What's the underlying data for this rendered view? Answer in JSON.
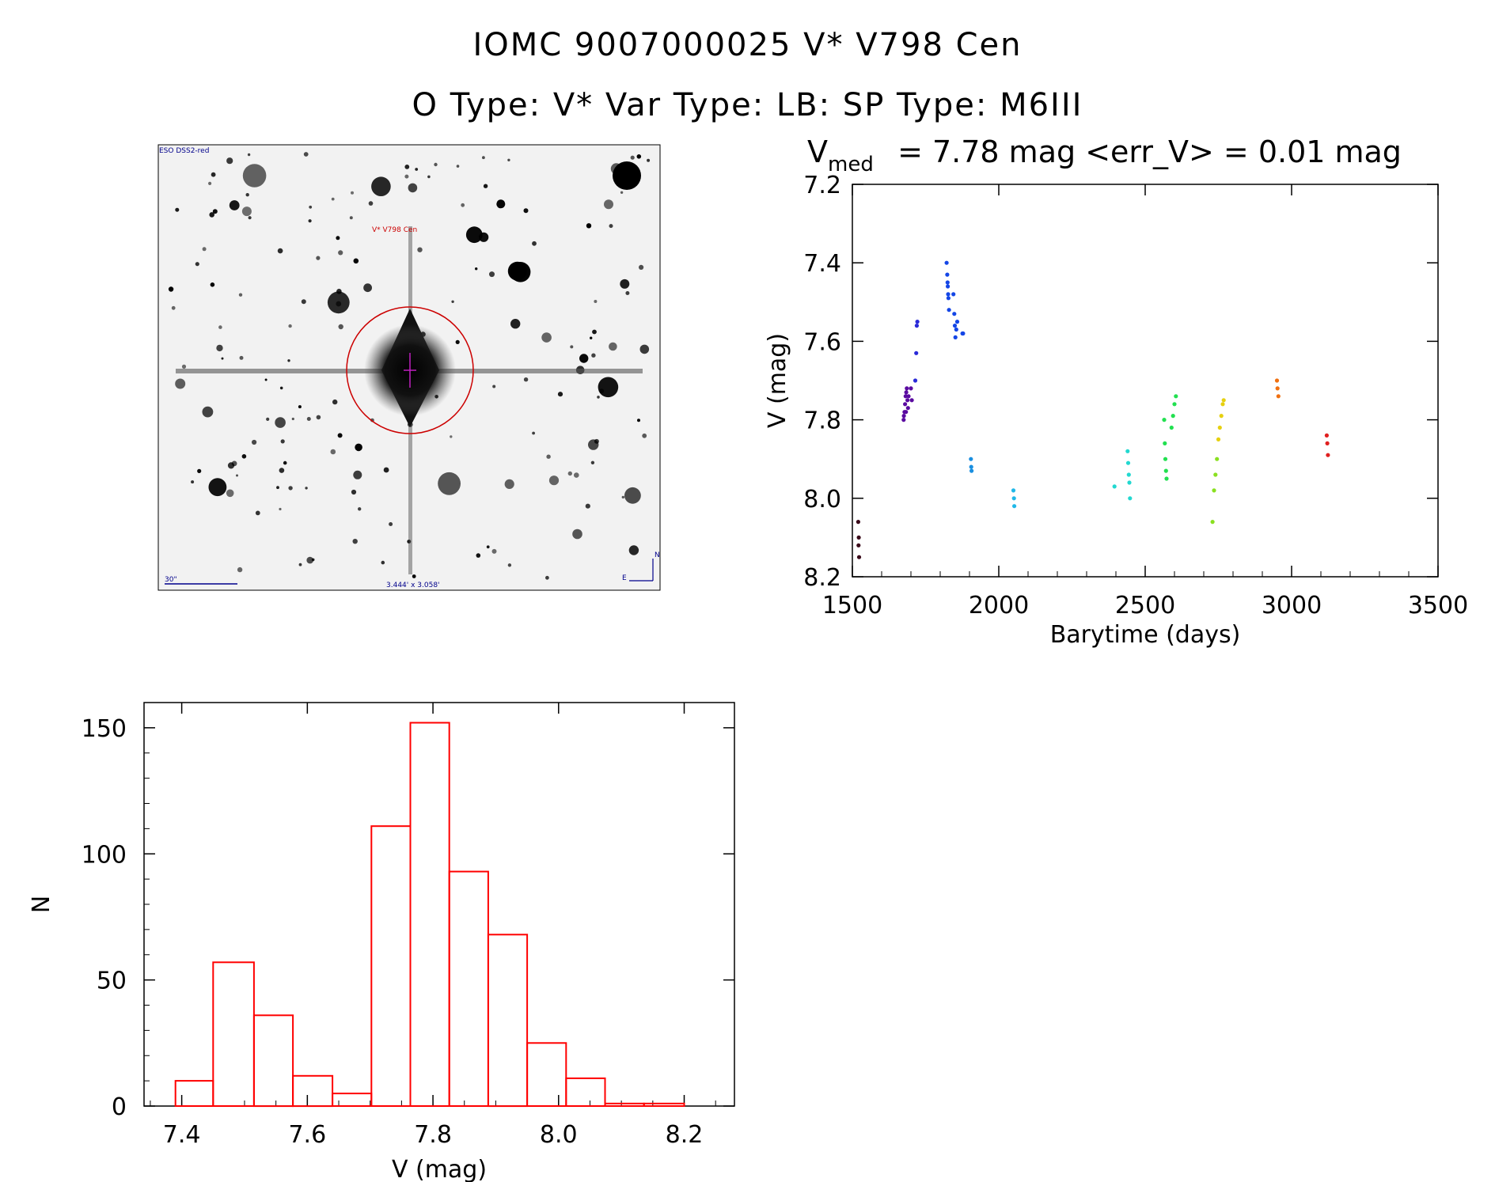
{
  "header": {
    "title_line1": "IOMC 9007000025    V* V798 Cen",
    "title_line2": "O Type: V*  Var Type: LB:  SP Type: M6III"
  },
  "finder_chart": {
    "survey_label": "ESO DSS2-red",
    "target_label": "V* V798 Cen",
    "scale_label": "30\"",
    "fov_label": "3.444' x 3.058'",
    "compass_north": "N",
    "compass_east": "E"
  },
  "colors": {
    "histogram": "#ff0000",
    "circle": "#cc0000",
    "annotation_blue": "#00008b"
  },
  "chart_data": [
    {
      "type": "scatter",
      "title_main": "V",
      "title_sub": "med",
      "title_rest": " = 7.78 mag <err_V> = 0.01 mag",
      "xlabel": "Barytime (days)",
      "ylabel": "V (mag)",
      "xlim": [
        1500,
        3500
      ],
      "ylim": [
        8.2,
        7.2
      ],
      "x_ticks": [
        "1500",
        "2000",
        "2500",
        "3000",
        "3500"
      ],
      "y_ticks": [
        "7.2",
        "7.4",
        "7.6",
        "7.8",
        "8.0",
        "8.2"
      ],
      "series": [
        {
          "name": "s1",
          "color": "#3a0a1a",
          "points": [
            [
              1520,
              8.06
            ],
            [
              1522,
              8.1
            ],
            [
              1521,
              8.12
            ],
            [
              1523,
              8.15
            ]
          ]
        },
        {
          "name": "s2",
          "color": "#5a0aa0",
          "points": [
            [
              1675,
              7.8
            ],
            [
              1678,
              7.78
            ],
            [
              1680,
              7.76
            ],
            [
              1682,
              7.74
            ],
            [
              1684,
              7.73
            ],
            [
              1686,
              7.72
            ],
            [
              1688,
              7.75
            ],
            [
              1690,
              7.77
            ],
            [
              1676,
              7.79
            ],
            [
              1683,
              7.78
            ],
            [
              1692,
              7.74
            ],
            [
              1700,
              7.72
            ],
            [
              1703,
              7.75
            ]
          ]
        },
        {
          "name": "s3",
          "color": "#2a2ad8",
          "points": [
            [
              1715,
              7.7
            ],
            [
              1718,
              7.63
            ],
            [
              1720,
              7.56
            ],
            [
              1722,
              7.55
            ]
          ]
        },
        {
          "name": "s4",
          "color": "#1446e6",
          "points": [
            [
              1822,
              7.4
            ],
            [
              1824,
              7.43
            ],
            [
              1826,
              7.46
            ],
            [
              1828,
              7.49
            ],
            [
              1830,
              7.52
            ],
            [
              1825,
              7.45
            ],
            [
              1827,
              7.48
            ],
            [
              1845,
              7.48
            ],
            [
              1848,
              7.53
            ],
            [
              1850,
              7.56
            ],
            [
              1852,
              7.59
            ],
            [
              1855,
              7.57
            ],
            [
              1858,
              7.55
            ],
            [
              1876,
              7.58
            ],
            [
              1878,
              7.58
            ]
          ]
        },
        {
          "name": "s5",
          "color": "#1a8fe0",
          "points": [
            [
              1905,
              7.9
            ],
            [
              1906,
              7.92
            ],
            [
              1907,
              7.93
            ]
          ]
        },
        {
          "name": "s6",
          "color": "#20b8e8",
          "points": [
            [
              2050,
              7.98
            ],
            [
              2052,
              8.0
            ],
            [
              2053,
              8.02
            ]
          ]
        },
        {
          "name": "s7",
          "color": "#22d8d0",
          "points": [
            [
              2395,
              7.97
            ],
            [
              2440,
              7.88
            ],
            [
              2442,
              7.91
            ],
            [
              2444,
              7.94
            ],
            [
              2446,
              7.96
            ],
            [
              2448,
              8.0
            ]
          ]
        },
        {
          "name": "s8",
          "color": "#22e050",
          "points": [
            [
              2565,
              7.8
            ],
            [
              2567,
              7.86
            ],
            [
              2569,
              7.9
            ],
            [
              2571,
              7.93
            ],
            [
              2573,
              7.95
            ],
            [
              2590,
              7.82
            ],
            [
              2595,
              7.79
            ],
            [
              2600,
              7.76
            ],
            [
              2605,
              7.74
            ]
          ]
        },
        {
          "name": "s9",
          "color": "#8ae020",
          "points": [
            [
              2730,
              8.06
            ],
            [
              2735,
              7.98
            ],
            [
              2740,
              7.94
            ],
            [
              2745,
              7.9
            ]
          ]
        },
        {
          "name": "s10",
          "color": "#e6d010",
          "points": [
            [
              2750,
              7.85
            ],
            [
              2755,
              7.82
            ],
            [
              2760,
              7.79
            ],
            [
              2765,
              7.76
            ],
            [
              2768,
              7.75
            ]
          ]
        },
        {
          "name": "s11",
          "color": "#f07010",
          "points": [
            [
              2950,
              7.7
            ],
            [
              2952,
              7.72
            ],
            [
              2955,
              7.74
            ]
          ]
        },
        {
          "name": "s12",
          "color": "#e02020",
          "points": [
            [
              3120,
              7.84
            ],
            [
              3122,
              7.86
            ],
            [
              3124,
              7.89
            ]
          ]
        }
      ]
    },
    {
      "type": "bar",
      "xlabel": "V (mag)",
      "ylabel": "N",
      "xlim": [
        7.34,
        8.28
      ],
      "ylim": [
        0,
        160
      ],
      "x_ticks": [
        "7.4",
        "7.6",
        "7.8",
        "8.0",
        "8.2"
      ],
      "y_ticks": [
        "0",
        "50",
        "100",
        "150"
      ],
      "bin_edges": [
        7.39,
        7.45,
        7.515,
        7.577,
        7.64,
        7.702,
        7.764,
        7.826,
        7.888,
        7.95,
        8.012,
        8.074,
        8.136,
        8.2
      ],
      "values": [
        10,
        57,
        36,
        12,
        5,
        111,
        152,
        93,
        68,
        25,
        11,
        1,
        1
      ]
    }
  ]
}
